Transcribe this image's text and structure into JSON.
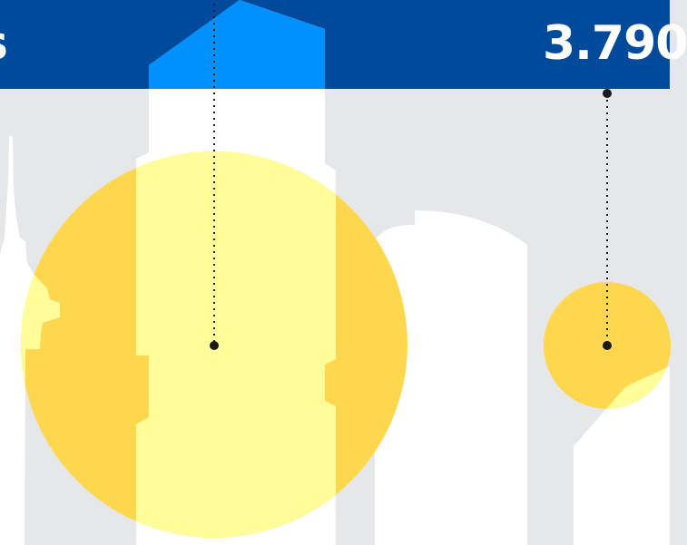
{
  "banner": {
    "left_value": "s",
    "right_value": "3.790"
  },
  "colors": {
    "banner": "#004a9b",
    "background": "#e6e7e9",
    "building": "#ffffff",
    "tower_roof": "#0090ff",
    "circle_fill": "#ffd74f",
    "circle_highlight": "#fffc9a",
    "connector": "#1a1a1a"
  },
  "markers": [
    {
      "name": "large-bubble",
      "relative_size": 1.0
    },
    {
      "name": "small-bubble",
      "relative_size": 0.33
    }
  ]
}
